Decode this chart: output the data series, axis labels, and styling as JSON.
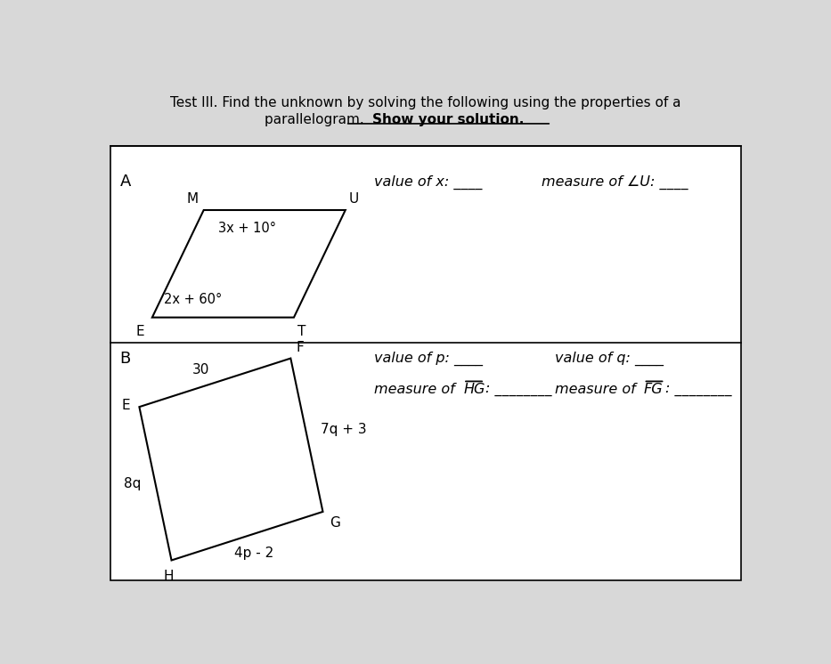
{
  "title_line1": "Test III. Find the unknown by solving the following using the properties of a",
  "title_line2": "parallelogram. ",
  "title_bold": "Show your solution.",
  "bg_color": "#d8d8d8",
  "white_bg": "#ffffff",
  "section_A_label": "A",
  "section_B_label": "B",
  "para_A_angle1_text": "3x + 10°",
  "para_A_angle2_text": "2x + 60°",
  "para_B_side_EF": "30",
  "para_B_side_FG": "7q + 3",
  "para_B_side_EH": "8q",
  "para_B_side_HG": "4p - 2"
}
